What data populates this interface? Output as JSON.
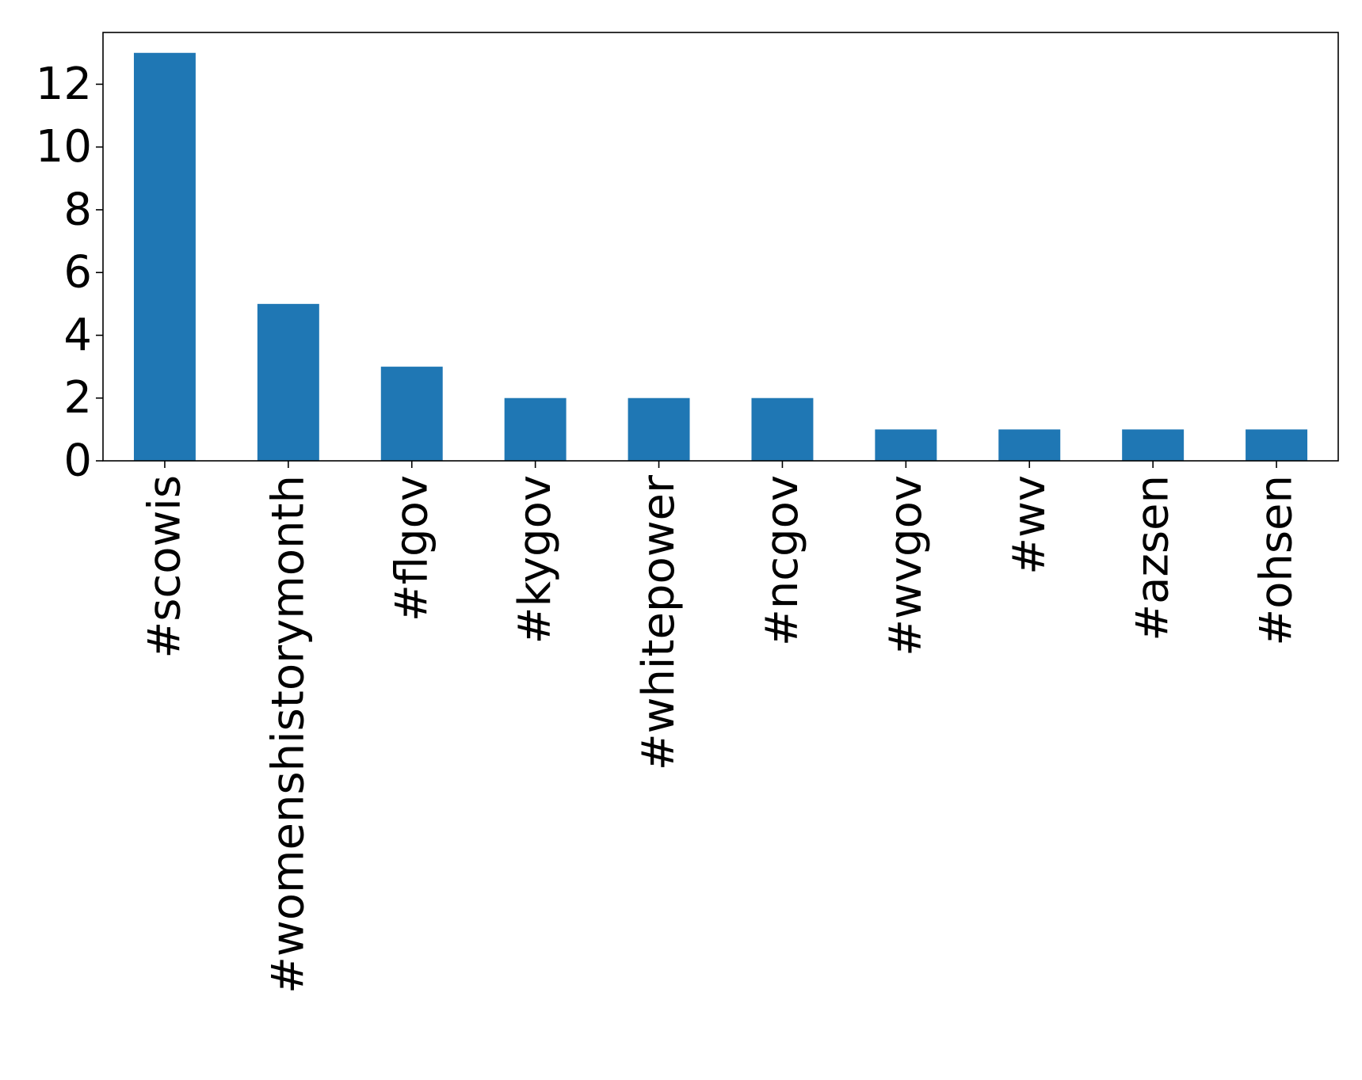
{
  "chart_data": {
    "type": "bar",
    "title": "",
    "xlabel": "",
    "ylabel": "",
    "categories": [
      "#scowis",
      "#womenshistorymonth",
      "#flgov",
      "#kygov",
      "#whitepower",
      "#ncgov",
      "#wvgov",
      "#wv",
      "#azsen",
      "#ohsen"
    ],
    "values": [
      13,
      5,
      3,
      2,
      2,
      2,
      1,
      1,
      1,
      1
    ],
    "ylim": [
      0,
      13.65
    ],
    "yticks": [
      0,
      2,
      4,
      6,
      8,
      10,
      12
    ],
    "ytick_labels": [
      "0",
      "2",
      "4",
      "6",
      "8",
      "10",
      "12"
    ],
    "bar_color": "#1f77b4",
    "grid": false,
    "legend": "none"
  }
}
